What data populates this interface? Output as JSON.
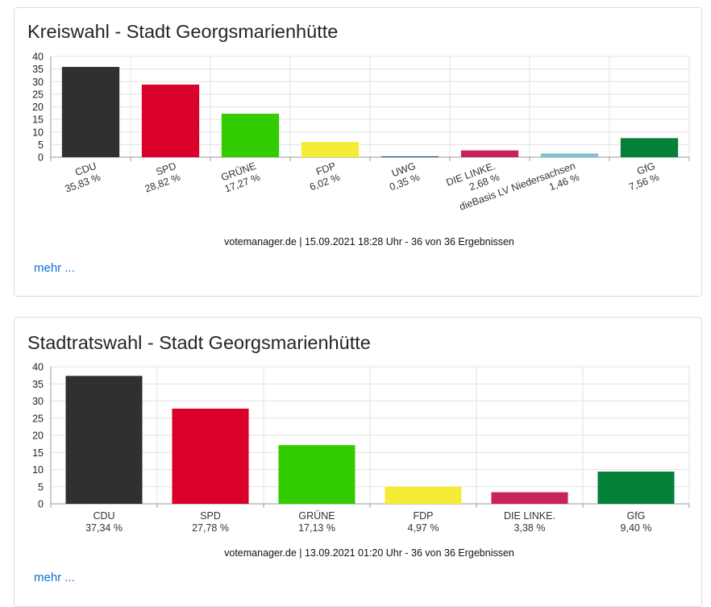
{
  "cards": [
    {
      "title": "Kreiswahl - Stadt Georgsmarienhütte",
      "more_label": "mehr ...",
      "chart_data": {
        "type": "bar",
        "ylim": [
          0,
          40
        ],
        "yticks": [
          0,
          5,
          10,
          15,
          20,
          25,
          30,
          35,
          40
        ],
        "grid": true,
        "xlabel_rotated": true,
        "categories": [
          "CDU",
          "SPD",
          "GRÜNE",
          "FDP",
          "UWG",
          "DIE LINKE.",
          "dieBasis LV Niedersachsen",
          "GfG"
        ],
        "values": [
          35.83,
          28.82,
          17.27,
          6.02,
          0.35,
          2.68,
          1.46,
          7.56
        ],
        "value_labels": [
          "35,83 %",
          "28,82 %",
          "17,27 %",
          "6,02 %",
          "0,35 %",
          "2,68 %",
          "1,46 %",
          "7,56 %"
        ],
        "colors": [
          "#32302e",
          "#d9002a",
          "#33cc00",
          "#f7ec35",
          "#1f4e8c",
          "#c8215c",
          "#7fc3d0",
          "#058038"
        ],
        "footer": "votemanager.de | 15.09.2021 18:28 Uhr - 36 von 36 Ergebnissen"
      }
    },
    {
      "title": "Stadtratswahl - Stadt Georgsmarienhütte",
      "more_label": "mehr ...",
      "chart_data": {
        "type": "bar",
        "ylim": [
          0,
          40
        ],
        "yticks": [
          0,
          5,
          10,
          15,
          20,
          25,
          30,
          35,
          40
        ],
        "grid": true,
        "xlabel_rotated": false,
        "categories": [
          "CDU",
          "SPD",
          "GRÜNE",
          "FDP",
          "DIE LINKE.",
          "GfG"
        ],
        "values": [
          37.34,
          27.78,
          17.13,
          4.97,
          3.38,
          9.4
        ],
        "value_labels": [
          "37,34 %",
          "27,78 %",
          "17,13 %",
          "4,97 %",
          "3,38 %",
          "9,40 %"
        ],
        "colors": [
          "#32302e",
          "#d9002a",
          "#33cc00",
          "#f7ec35",
          "#c8215c",
          "#058038"
        ],
        "footer": "votemanager.de | 13.09.2021 01:20 Uhr - 36 von 36 Ergebnissen"
      }
    }
  ]
}
